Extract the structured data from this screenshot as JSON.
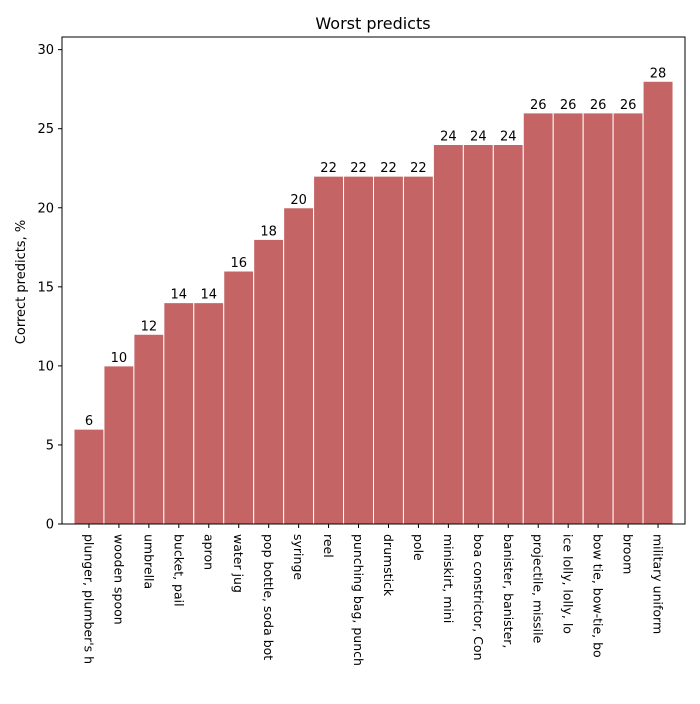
{
  "chart_data": {
    "type": "bar",
    "title": "Worst predicts",
    "xlabel": "",
    "ylabel": "Correct predicts, %",
    "ylim": [
      0,
      30.8
    ],
    "yticks": [
      0,
      5,
      10,
      15,
      20,
      25,
      30
    ],
    "grid": false,
    "legend": "none",
    "bar_color": "#c56464",
    "categories": [
      "plunger, plumber's h",
      "wooden spoon",
      "umbrella",
      "bucket, pail",
      "apron",
      "water jug",
      "pop bottle, soda bot",
      "syringe",
      "reel",
      "punching bag, punch",
      "drumstick",
      "pole",
      "miniskirt, mini",
      "boa constrictor, Con",
      "banister, banister,",
      "projectile, missile",
      "ice lolly, lolly, lo",
      "bow tie, bow-tie, bo",
      "broom",
      "military uniform"
    ],
    "values": [
      6,
      10,
      12,
      14,
      14,
      16,
      18,
      20,
      22,
      22,
      22,
      22,
      24,
      24,
      24,
      26,
      26,
      26,
      26,
      28
    ]
  }
}
